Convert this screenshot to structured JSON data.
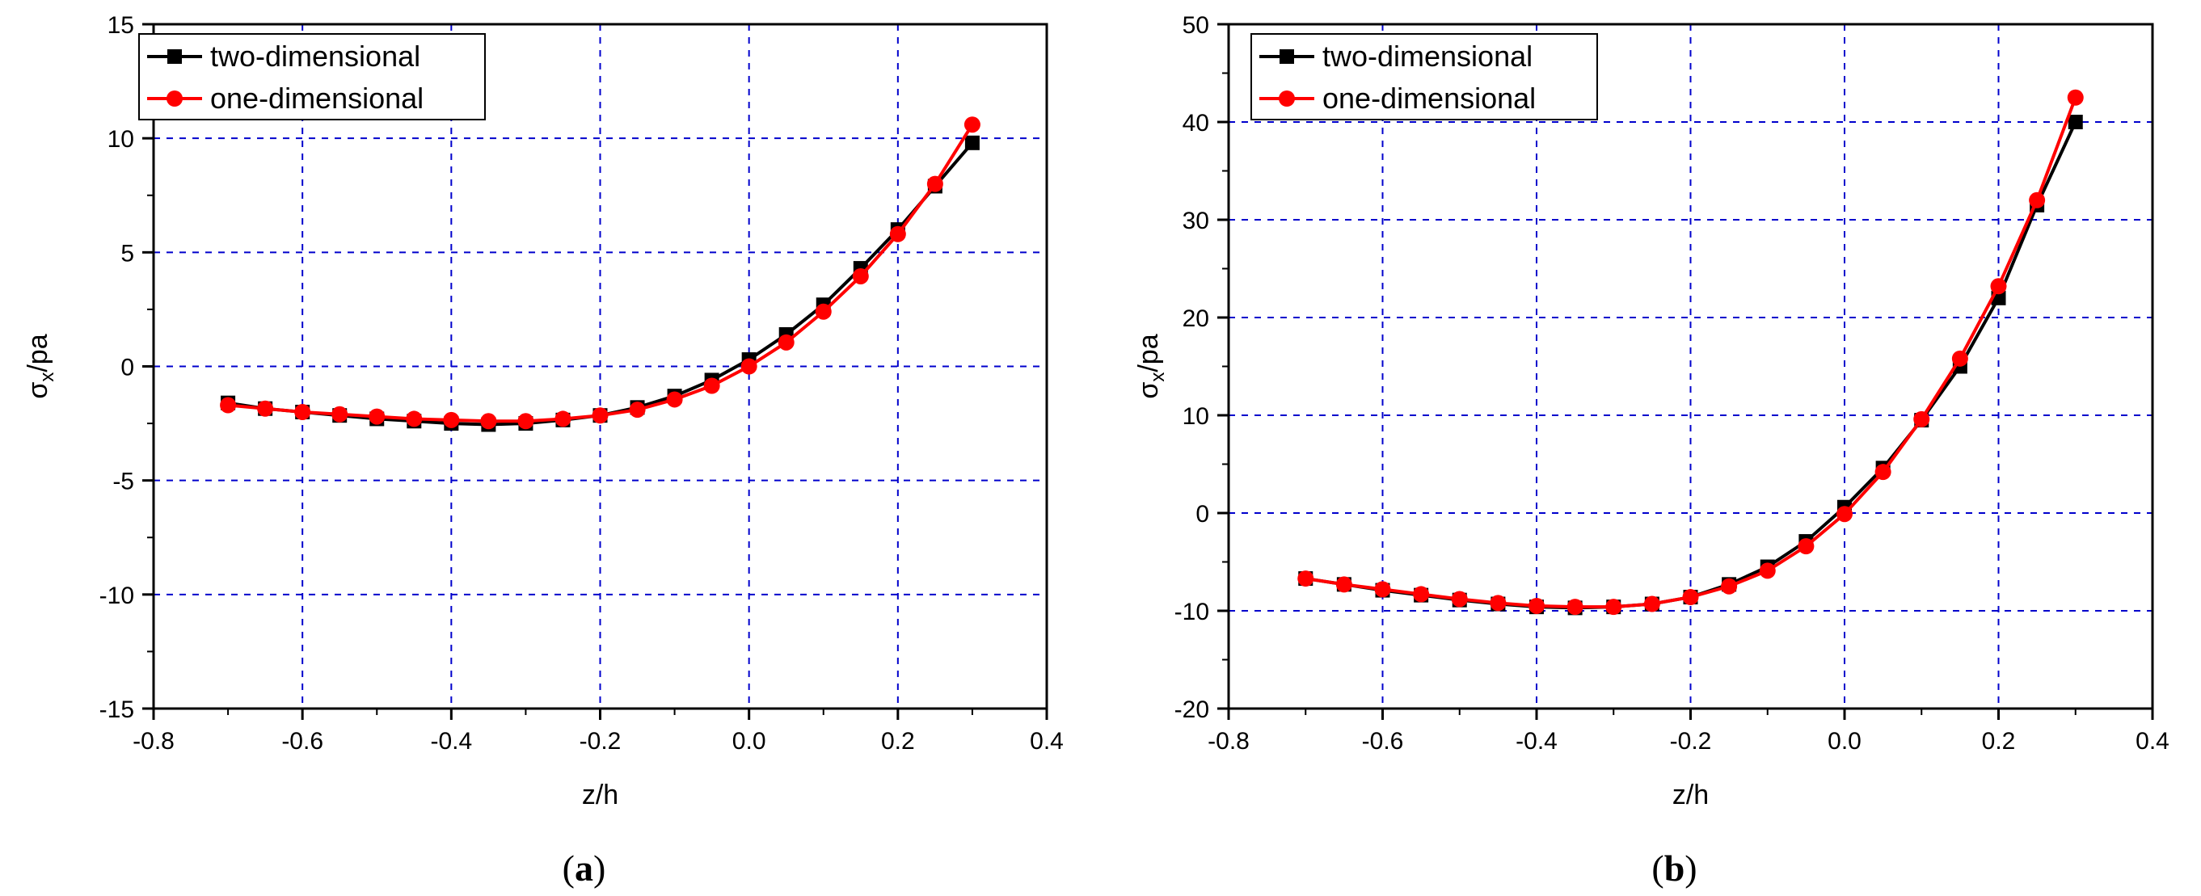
{
  "chart_data": [
    {
      "type": "line",
      "panel_label": "a",
      "xlabel": "z/h",
      "ylabel_main": "σ",
      "ylabel_sub": "x",
      "ylabel_suffix": "/pa",
      "xlim": [
        -0.8,
        0.4
      ],
      "ylim": [
        -15,
        15
      ],
      "xticks": [
        -0.8,
        -0.6,
        -0.4,
        -0.2,
        0.0,
        0.2,
        0.4
      ],
      "xtick_labels": [
        "-0.8",
        "-0.6",
        "-0.4",
        "-0.2",
        "0.0",
        "0.2",
        "0.4"
      ],
      "yticks": [
        -15,
        -10,
        -5,
        0,
        5,
        10,
        15
      ],
      "ytick_labels": [
        "-15",
        "-10",
        "-5",
        "0",
        "5",
        "10",
        "15"
      ],
      "grid": true,
      "legend_position": "top-left",
      "x": [
        -0.7,
        -0.65,
        -0.6,
        -0.55,
        -0.5,
        -0.45,
        -0.4,
        -0.35,
        -0.3,
        -0.25,
        -0.2,
        -0.15,
        -0.1,
        -0.05,
        0.0,
        0.05,
        0.1,
        0.15,
        0.2,
        0.25,
        0.3
      ],
      "series": [
        {
          "name": "two-dimensional",
          "color": "#000000",
          "marker": "square",
          "values": [
            -1.6,
            -1.85,
            -2.0,
            -2.15,
            -2.3,
            -2.4,
            -2.5,
            -2.55,
            -2.5,
            -2.35,
            -2.15,
            -1.8,
            -1.3,
            -0.6,
            0.3,
            1.4,
            2.7,
            4.3,
            6.0,
            7.9,
            9.8
          ]
        },
        {
          "name": "one-dimensional",
          "color": "#ff0000",
          "marker": "circle",
          "values": [
            -1.7,
            -1.85,
            -2.0,
            -2.1,
            -2.2,
            -2.3,
            -2.35,
            -2.4,
            -2.4,
            -2.3,
            -2.15,
            -1.9,
            -1.45,
            -0.85,
            0.0,
            1.05,
            2.4,
            3.95,
            5.8,
            8.0,
            10.6
          ]
        }
      ]
    },
    {
      "type": "line",
      "panel_label": "b",
      "xlabel": "z/h",
      "ylabel_main": "σ",
      "ylabel_sub": "x",
      "ylabel_suffix": "/pa",
      "xlim": [
        -0.8,
        0.4
      ],
      "ylim": [
        -20,
        50
      ],
      "xticks": [
        -0.8,
        -0.6,
        -0.4,
        -0.2,
        0.0,
        0.2,
        0.4
      ],
      "xtick_labels": [
        "-0.8",
        "-0.6",
        "-0.4",
        "-0.2",
        "0.0",
        "0.2",
        "0.4"
      ],
      "yticks": [
        -20,
        -10,
        0,
        10,
        20,
        30,
        40,
        50
      ],
      "ytick_labels": [
        "-20",
        "-10",
        "0",
        "10",
        "20",
        "30",
        "40",
        "50"
      ],
      "grid": true,
      "legend_position": "top-left",
      "x": [
        -0.7,
        -0.65,
        -0.6,
        -0.55,
        -0.5,
        -0.45,
        -0.4,
        -0.35,
        -0.3,
        -0.25,
        -0.2,
        -0.15,
        -0.1,
        -0.05,
        0.0,
        0.05,
        0.1,
        0.15,
        0.2,
        0.25,
        0.3
      ],
      "series": [
        {
          "name": "two-dimensional",
          "color": "#000000",
          "marker": "square",
          "values": [
            -6.7,
            -7.3,
            -7.9,
            -8.4,
            -8.9,
            -9.3,
            -9.6,
            -9.7,
            -9.6,
            -9.3,
            -8.6,
            -7.3,
            -5.5,
            -2.9,
            0.6,
            4.6,
            9.5,
            15.0,
            22.0,
            31.5,
            40.0
          ]
        },
        {
          "name": "one-dimensional",
          "color": "#ff0000",
          "marker": "circle",
          "values": [
            -6.7,
            -7.3,
            -7.8,
            -8.3,
            -8.8,
            -9.2,
            -9.5,
            -9.6,
            -9.6,
            -9.3,
            -8.6,
            -7.5,
            -5.9,
            -3.4,
            -0.1,
            4.2,
            9.6,
            15.8,
            23.2,
            32.0,
            42.5
          ]
        }
      ]
    }
  ]
}
